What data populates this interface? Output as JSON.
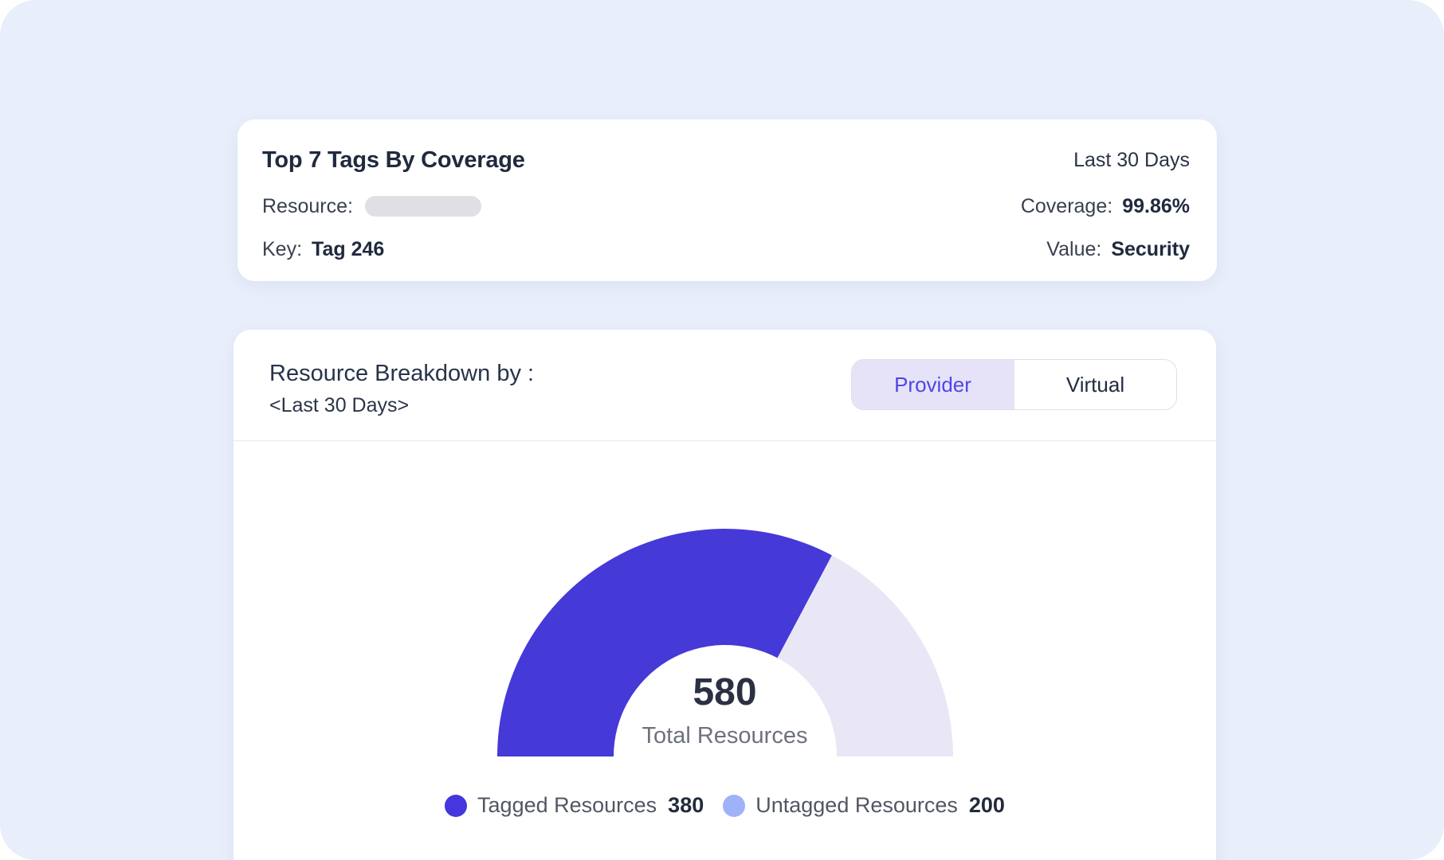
{
  "page": {
    "background_color": "#e8eefa"
  },
  "top_card": {
    "title": "Top 7 Tags By Coverage",
    "period": "Last 30 Days",
    "resource_label": "Resource:",
    "coverage_label": "Coverage:",
    "coverage_value": "99.86%",
    "key_label": "Key:",
    "key_value": "Tag 246",
    "value_label": "Value:",
    "value_value": "Security"
  },
  "breakdown_card": {
    "title": "Resource Breakdown by :",
    "subtitle": "<Last 30 Days>",
    "toggle": {
      "options": [
        {
          "label": "Provider",
          "selected": true
        },
        {
          "label": "Virtual",
          "selected": false
        }
      ]
    }
  },
  "chart_data": {
    "type": "donut",
    "shape": "semicircle",
    "title": "Resource Breakdown by : <Last 30 Days>",
    "center_value": "580",
    "center_label": "Total Resources",
    "total": 580,
    "segments": [
      {
        "label": "Tagged Resources",
        "value": 380,
        "color": "#4539d8",
        "legend_color": "#4437dd"
      },
      {
        "label": "Untagged Resources",
        "value": 200,
        "color": "#e9e7f6",
        "legend_color": "#9fb2f7"
      }
    ],
    "inner_radius_ratio": 0.49,
    "legend_position": "bottom",
    "grid": false
  },
  "colors": {
    "accent": "#4f46e5",
    "accent_bg": "#e6e3f9",
    "tagged_arc": "#4539d8",
    "untagged_arc": "#e9e7f6",
    "untagged_legend_dot": "#9fb2f7",
    "page_bg": "#e8eefa"
  }
}
